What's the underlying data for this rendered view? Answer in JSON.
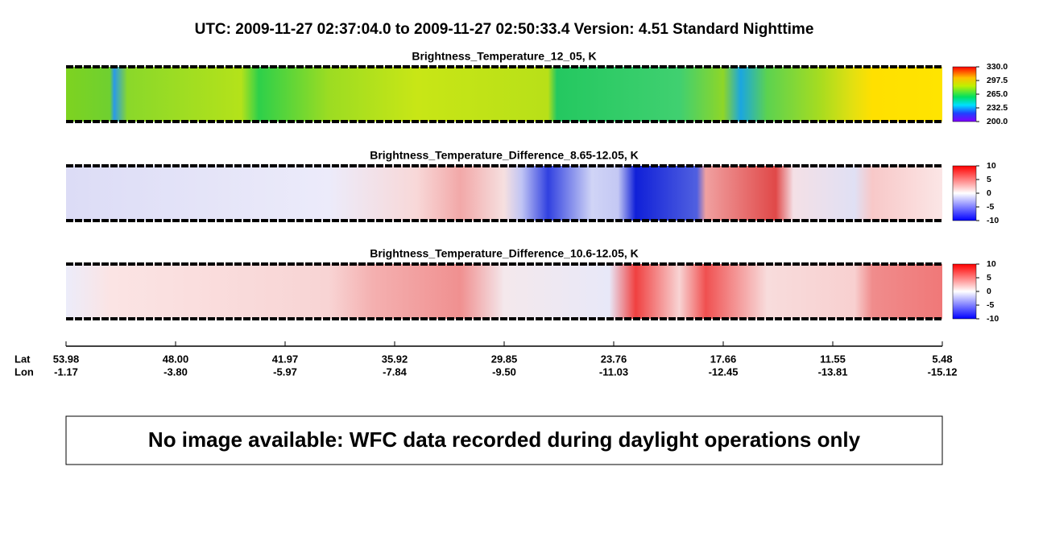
{
  "header": {
    "title": "UTC:  2009-11-27   02:37:04.0  to  2009-11-27   02:50:33.4    Version: 4.51  Standard Nighttime"
  },
  "panels": [
    {
      "title": "Brightness_Temperature_12_05, K",
      "colorbar": {
        "range": [
          200,
          330
        ],
        "ticks": [
          {
            "value": 330,
            "label": "330.0"
          },
          {
            "value": 297.5,
            "label": "297.5"
          },
          {
            "value": 265,
            "label": "265.0"
          },
          {
            "value": 232.5,
            "label": "232.5"
          },
          {
            "value": 200,
            "label": "200.0"
          }
        ]
      }
    },
    {
      "title": "Brightness_Temperature_Difference_8.65-12.05, K",
      "colorbar": {
        "range": [
          -10,
          10
        ],
        "ticks": [
          10,
          5,
          0,
          -5,
          -10
        ]
      }
    },
    {
      "title": "Brightness_Temperature_Difference_10.6-12.05, K",
      "colorbar": {
        "range": [
          -10,
          10
        ],
        "ticks": [
          10,
          5,
          0,
          -5,
          -10
        ]
      }
    }
  ],
  "axis": {
    "lat_label": "Lat",
    "lon_label": "Lon",
    "ticks": [
      {
        "lat": "53.98",
        "lon": "-1.17"
      },
      {
        "lat": "48.00",
        "lon": "-3.80"
      },
      {
        "lat": "41.97",
        "lon": "-5.97"
      },
      {
        "lat": "35.92",
        "lon": "-7.84"
      },
      {
        "lat": "29.85",
        "lon": "-9.50"
      },
      {
        "lat": "23.76",
        "lon": "-11.03"
      },
      {
        "lat": "17.66",
        "lon": "-12.45"
      },
      {
        "lat": "11.55",
        "lon": "-13.81"
      },
      {
        "lat": "5.48",
        "lon": "-15.12"
      }
    ]
  },
  "notice": "No image available: WFC data recorded during daylight operations only"
}
